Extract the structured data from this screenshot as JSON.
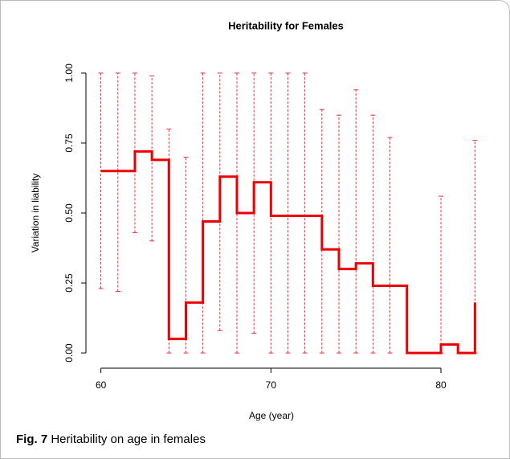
{
  "chart_data": {
    "type": "step",
    "title": "Heritability for Females",
    "xlabel": "Age (year)",
    "ylabel": "Variation in liability",
    "x": [
      60,
      61,
      62,
      63,
      64,
      65,
      66,
      67,
      68,
      69,
      70,
      71,
      72,
      73,
      74,
      75,
      76,
      77,
      78,
      79,
      80,
      81,
      82
    ],
    "series": [
      {
        "color": "#ee0000",
        "values": [
          0.65,
          0.65,
          0.72,
          0.69,
          0.05,
          0.18,
          0.47,
          0.63,
          0.5,
          0.61,
          0.49,
          0.49,
          0.49,
          0.37,
          0.3,
          0.32,
          0.24,
          0.24,
          0.0,
          0.0,
          0.03,
          0.0,
          0.18
        ],
        "lower": [
          0.23,
          0.22,
          0.43,
          0.4,
          0.0,
          0.0,
          0.0,
          0.08,
          0.0,
          0.07,
          0.0,
          0.0,
          0.0,
          0.0,
          0.0,
          0.0,
          0.0,
          0.0,
          null,
          null,
          0.0,
          null,
          0.0
        ],
        "upper": [
          1.0,
          1.0,
          1.0,
          0.99,
          0.8,
          0.7,
          1.0,
          1.0,
          1.0,
          1.0,
          1.0,
          1.0,
          1.0,
          0.87,
          0.85,
          0.94,
          0.85,
          0.77,
          null,
          null,
          0.56,
          null,
          0.76
        ]
      }
    ],
    "xlim": [
      59.12,
      82.88
    ],
    "ylim": [
      -0.04,
      1.04
    ],
    "xticks": [
      60,
      70,
      80
    ],
    "yticks": [
      {
        "value": 0,
        "label": "0.00"
      },
      {
        "value": 0.25,
        "label": "0.25"
      },
      {
        "value": 0.5,
        "label": "0.50"
      },
      {
        "value": 0.75,
        "label": "0.75"
      },
      {
        "value": 1,
        "label": "1.00"
      }
    ]
  },
  "caption": {
    "label": "Fig. 7",
    "text": "Heritability on age in females"
  }
}
